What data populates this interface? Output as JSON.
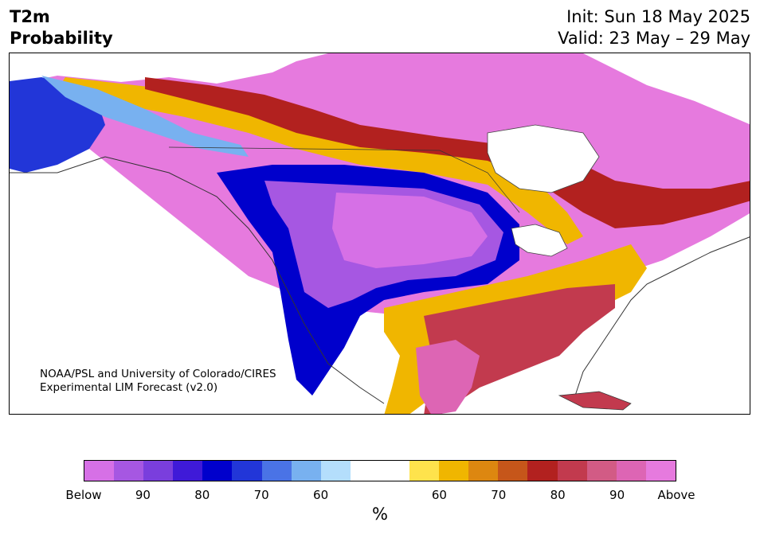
{
  "header": {
    "variable": "T2m",
    "product": "Probability",
    "init": "Init: Sun 18 May 2025",
    "valid": "Valid: 23 May – 29 May"
  },
  "credit": {
    "line1": "NOAA/PSL and University of Colorado/CIRES",
    "line2": "Experimental LIM Forecast (v2.0)"
  },
  "colorbar": {
    "colors": [
      "#d670e6",
      "#a657e2",
      "#7a3edd",
      "#3f1ad8",
      "#0000cc",
      "#2236d8",
      "#4a73e6",
      "#78b1f0",
      "#b4defc",
      "#ffffff",
      "#ffffff",
      "#fee34c",
      "#f0b600",
      "#dd8710",
      "#c6561a",
      "#b2211f",
      "#c23a4e",
      "#d25b85",
      "#dd65b4",
      "#e67ade"
    ],
    "labels": [
      "Below",
      "90",
      "80",
      "70",
      "60",
      "60",
      "70",
      "80",
      "90",
      "Above"
    ],
    "unit": "%"
  },
  "legend_colors": {
    "below_strong": "#a657e2",
    "below_mid": "#0000cc",
    "near_normal": "#ffffff",
    "above_mid": "#f0b600",
    "above_strong": "#e67ade"
  }
}
